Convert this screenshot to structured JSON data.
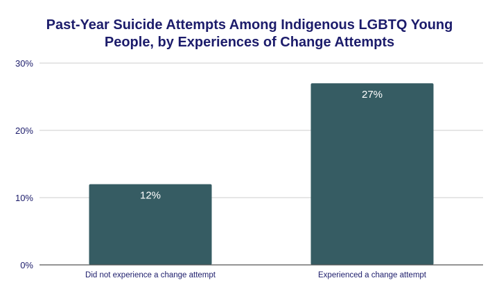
{
  "chart_data": {
    "type": "bar",
    "title_lines": [
      "Past-Year Suicide Attempts Among Indigenous LGBTQ Young",
      "People, by Experiences of Change Attempts"
    ],
    "categories": [
      "Did not experience a change attempt",
      "Experienced a change attempt"
    ],
    "values": [
      12,
      27
    ],
    "data_labels": [
      "12%",
      "27%"
    ],
    "ylim": [
      0,
      30
    ],
    "yticks": [
      0,
      10,
      20,
      30
    ],
    "ytick_labels": [
      "0%",
      "10%",
      "20%",
      "30%"
    ],
    "xlabel": "",
    "ylabel": "",
    "grid": true,
    "legend": "none",
    "colors": {
      "bar": "#365c63",
      "text": "#1c1c6b",
      "grid": "#cccccc",
      "axis": "#555555"
    }
  }
}
